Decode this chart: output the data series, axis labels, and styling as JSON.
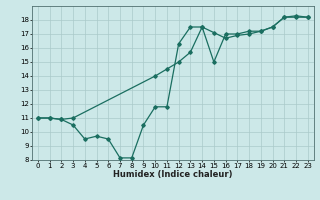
{
  "xlabel": "Humidex (Indice chaleur)",
  "ylabel": "",
  "bg_color": "#cce8e8",
  "grid_color": "#aacaca",
  "line_color": "#1a6e60",
  "ylim": [
    8,
    19
  ],
  "xlim": [
    -0.5,
    23.5
  ],
  "yticks": [
    8,
    9,
    10,
    11,
    12,
    13,
    14,
    15,
    16,
    17,
    18
  ],
  "xticks": [
    0,
    1,
    2,
    3,
    4,
    5,
    6,
    7,
    8,
    9,
    10,
    11,
    12,
    13,
    14,
    15,
    16,
    17,
    18,
    19,
    20,
    21,
    22,
    23
  ],
  "line1_x": [
    0,
    1,
    2,
    3,
    4,
    5,
    6,
    7,
    8,
    9,
    10,
    11,
    12,
    13,
    14,
    15,
    16,
    17,
    18,
    19,
    20,
    21,
    22,
    23
  ],
  "line1_y": [
    11.0,
    11.0,
    10.9,
    10.5,
    9.5,
    9.7,
    9.5,
    8.15,
    8.15,
    10.5,
    11.8,
    11.8,
    16.3,
    17.5,
    17.5,
    17.1,
    16.7,
    16.9,
    17.0,
    17.2,
    17.5,
    18.2,
    18.2,
    18.2
  ],
  "line2_x": [
    0,
    1,
    2,
    3,
    10,
    11,
    12,
    13,
    14,
    15,
    16,
    17,
    18,
    19,
    20,
    21,
    22,
    23
  ],
  "line2_y": [
    11.0,
    11.0,
    10.9,
    11.0,
    14.0,
    14.5,
    15.0,
    15.7,
    17.5,
    15.0,
    17.0,
    17.0,
    17.2,
    17.2,
    17.5,
    18.2,
    18.3,
    18.2
  ]
}
